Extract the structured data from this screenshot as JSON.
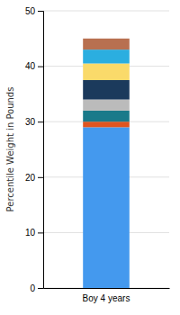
{
  "chart_data": {
    "type": "bar",
    "stacked": true,
    "categories": [
      "Boy 4 years"
    ],
    "series": [
      {
        "color": "#4499EE",
        "values": [
          29.0
        ]
      },
      {
        "color": "#E05520",
        "values": [
          1.0
        ]
      },
      {
        "color": "#1A7A8A",
        "values": [
          2.0
        ]
      },
      {
        "color": "#BBBBBB",
        "values": [
          2.0
        ]
      },
      {
        "color": "#1B3A5C",
        "values": [
          3.5
        ]
      },
      {
        "color": "#FADA6A",
        "values": [
          3.0
        ]
      },
      {
        "color": "#2BAEE0",
        "values": [
          2.5
        ]
      },
      {
        "color": "#B87050",
        "values": [
          2.0
        ]
      }
    ],
    "ylabel": "Percentile Weight in Pounds",
    "ylim": [
      0,
      50
    ],
    "yticks": [
      0,
      10,
      20,
      30,
      40,
      50
    ],
    "grid": true
  }
}
